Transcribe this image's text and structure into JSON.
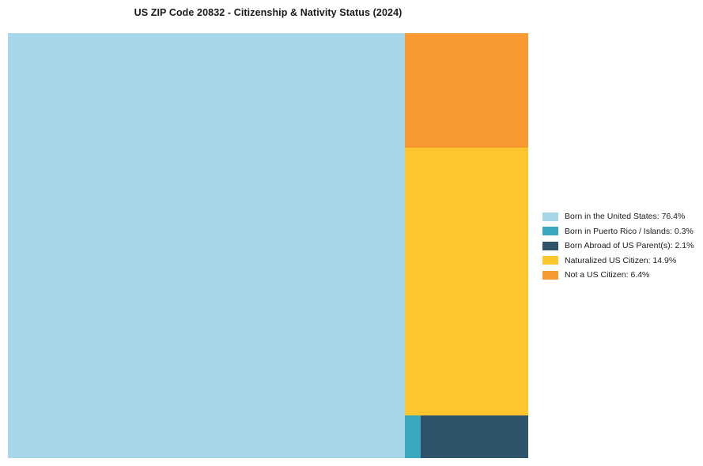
{
  "title": "US ZIP Code 20832 - Citizenship & Nativity Status (2024)",
  "chart_data": {
    "type": "treemap",
    "title": "US ZIP Code 20832 - Citizenship & Nativity Status (2024)",
    "legend_position": "right",
    "total_percent": 100.1,
    "items": [
      {
        "label": "Born in the United States",
        "value": 76.4,
        "unit": "%",
        "color": "#a7d5ea",
        "display": "Born in the United States: 76.4%"
      },
      {
        "label": "Born in Puerto Rico / Islands",
        "value": 0.3,
        "unit": "%",
        "color": "#3aa9c0",
        "display": "Born in Puerto Rico / Islands: 0.3%"
      },
      {
        "label": "Born Abroad of US Parent(s)",
        "value": 2.1,
        "unit": "%",
        "color": "#2e546b",
        "display": "Born Abroad of US Parent(s): 2.1%"
      },
      {
        "label": "Naturalized US Citizen",
        "value": 14.9,
        "unit": "%",
        "color": "#fdc62f",
        "display": "Naturalized US Citizen: 14.9%"
      },
      {
        "label": "Not a US Citizen",
        "value": 6.4,
        "unit": "%",
        "color": "#f99a31",
        "display": "Not a US Citizen: 6.4%"
      }
    ]
  }
}
